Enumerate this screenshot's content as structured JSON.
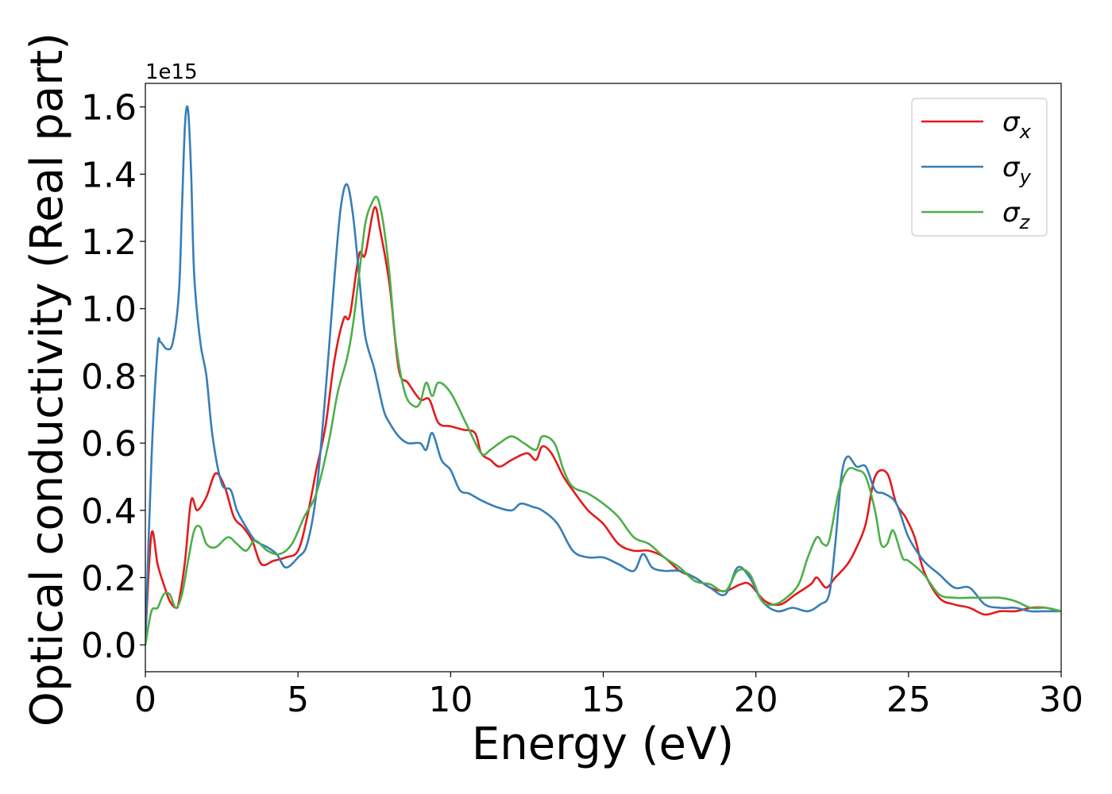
{
  "chart_data": {
    "type": "line",
    "title": "",
    "xlabel": "Energy (eV)",
    "ylabel": "Optical conductivity (Real part)",
    "y_offset_label": "1e15",
    "xlim": [
      0,
      30
    ],
    "ylim": [
      -0.08,
      1.67
    ],
    "xticks": [
      0,
      5,
      10,
      15,
      20,
      25,
      30
    ],
    "xtick_labels": [
      "0",
      "5",
      "10",
      "15",
      "20",
      "25",
      "30"
    ],
    "yticks": [
      0.0,
      0.2,
      0.4,
      0.6,
      0.8,
      1.0,
      1.2,
      1.4,
      1.6
    ],
    "ytick_labels": [
      "0.0",
      "0.2",
      "0.4",
      "0.6",
      "0.8",
      "1.0",
      "1.2",
      "1.4",
      "1.6"
    ],
    "grid": false,
    "legend_position": "top-right",
    "series": [
      {
        "name": "σx",
        "legend_symbol": "σ",
        "legend_sub": "x",
        "color": "#e41a1c",
        "x": [
          0,
          0.2,
          0.4,
          0.6,
          0.8,
          1.0,
          1.1,
          1.3,
          1.5,
          1.7,
          2.0,
          2.3,
          2.6,
          2.9,
          3.2,
          3.5,
          3.8,
          4.2,
          4.6,
          5.0,
          5.3,
          5.6,
          5.9,
          6.2,
          6.5,
          6.7,
          7.0,
          7.2,
          7.5,
          7.7,
          8.0,
          8.3,
          8.6,
          9.0,
          9.3,
          9.6,
          10.0,
          10.4,
          10.8,
          11.0,
          11.3,
          11.6,
          12.0,
          12.5,
          12.8,
          13.0,
          13.3,
          13.7,
          14.0,
          14.5,
          15.0,
          15.5,
          16.0,
          16.5,
          17.0,
          17.5,
          18.0,
          18.5,
          19.0,
          19.5,
          19.8,
          20.3,
          20.8,
          21.3,
          21.8,
          22.0,
          22.3,
          22.6,
          23.0,
          23.3,
          23.6,
          23.9,
          24.3,
          24.6,
          24.9,
          25.2,
          25.5,
          26.0,
          26.5,
          27.0,
          27.5,
          28.0,
          28.5,
          29.0,
          29.5,
          30.0
        ],
        "y": [
          0.02,
          0.33,
          0.24,
          0.18,
          0.13,
          0.11,
          0.13,
          0.25,
          0.43,
          0.4,
          0.44,
          0.51,
          0.47,
          0.38,
          0.35,
          0.31,
          0.24,
          0.25,
          0.26,
          0.28,
          0.38,
          0.52,
          0.65,
          0.85,
          0.97,
          0.98,
          1.16,
          1.16,
          1.3,
          1.23,
          1.07,
          0.82,
          0.78,
          0.73,
          0.73,
          0.66,
          0.65,
          0.64,
          0.63,
          0.57,
          0.55,
          0.53,
          0.55,
          0.57,
          0.55,
          0.59,
          0.57,
          0.5,
          0.46,
          0.4,
          0.36,
          0.3,
          0.28,
          0.28,
          0.26,
          0.22,
          0.2,
          0.17,
          0.16,
          0.18,
          0.18,
          0.13,
          0.12,
          0.15,
          0.18,
          0.2,
          0.17,
          0.2,
          0.24,
          0.29,
          0.36,
          0.5,
          0.51,
          0.42,
          0.38,
          0.32,
          0.22,
          0.14,
          0.12,
          0.11,
          0.09,
          0.1,
          0.1,
          0.11,
          0.11,
          0.1
        ]
      },
      {
        "name": "σy",
        "legend_symbol": "σ",
        "legend_sub": "y",
        "color": "#377eb8",
        "x": [
          0,
          0.2,
          0.4,
          0.5,
          0.7,
          0.9,
          1.1,
          1.2,
          1.3,
          1.4,
          1.5,
          1.6,
          1.8,
          2.0,
          2.2,
          2.5,
          2.8,
          3.0,
          3.3,
          3.6,
          4.0,
          4.3,
          4.6,
          5.0,
          5.3,
          5.6,
          5.9,
          6.2,
          6.4,
          6.6,
          6.8,
          7.0,
          7.2,
          7.5,
          7.8,
          8.0,
          8.3,
          8.6,
          9.0,
          9.2,
          9.4,
          9.7,
          10.0,
          10.3,
          10.6,
          11.0,
          11.5,
          12.0,
          12.3,
          12.7,
          13.0,
          13.5,
          14.0,
          14.5,
          15.0,
          15.5,
          16.0,
          16.3,
          16.6,
          17.0,
          17.5,
          18.0,
          18.5,
          19.0,
          19.4,
          19.8,
          20.2,
          20.7,
          21.2,
          21.7,
          22.1,
          22.4,
          22.6,
          22.8,
          23.0,
          23.3,
          23.6,
          23.9,
          24.2,
          24.6,
          25.0,
          25.5,
          26.0,
          26.5,
          27.0,
          27.5,
          28.0,
          28.5,
          29.0,
          29.5,
          30.0
        ],
        "y": [
          0.01,
          0.55,
          0.88,
          0.9,
          0.88,
          0.9,
          1.05,
          1.3,
          1.55,
          1.59,
          1.4,
          1.1,
          0.9,
          0.8,
          0.62,
          0.48,
          0.46,
          0.4,
          0.35,
          0.31,
          0.29,
          0.27,
          0.23,
          0.26,
          0.3,
          0.45,
          0.75,
          1.1,
          1.3,
          1.37,
          1.28,
          1.1,
          0.92,
          0.82,
          0.7,
          0.66,
          0.62,
          0.6,
          0.6,
          0.58,
          0.63,
          0.55,
          0.52,
          0.46,
          0.45,
          0.43,
          0.41,
          0.4,
          0.42,
          0.41,
          0.4,
          0.36,
          0.28,
          0.26,
          0.26,
          0.24,
          0.22,
          0.27,
          0.23,
          0.22,
          0.22,
          0.2,
          0.17,
          0.15,
          0.23,
          0.2,
          0.13,
          0.1,
          0.11,
          0.1,
          0.12,
          0.15,
          0.3,
          0.5,
          0.56,
          0.53,
          0.53,
          0.46,
          0.45,
          0.42,
          0.32,
          0.25,
          0.21,
          0.17,
          0.17,
          0.12,
          0.11,
          0.11,
          0.1,
          0.1,
          0.1
        ]
      },
      {
        "name": "σz",
        "legend_symbol": "σ",
        "legend_sub": "z",
        "color": "#4daf4a",
        "x": [
          0,
          0.2,
          0.4,
          0.6,
          0.8,
          1.0,
          1.2,
          1.4,
          1.6,
          1.8,
          2.0,
          2.3,
          2.7,
          3.0,
          3.3,
          3.6,
          4.0,
          4.4,
          4.8,
          5.2,
          5.6,
          6.0,
          6.3,
          6.6,
          6.8,
          7.0,
          7.2,
          7.4,
          7.6,
          7.8,
          8.0,
          8.2,
          8.5,
          8.8,
          9.0,
          9.2,
          9.4,
          9.6,
          10.0,
          10.5,
          11.0,
          11.3,
          11.6,
          12.0,
          12.4,
          12.8,
          13.0,
          13.4,
          13.7,
          14.0,
          14.5,
          15.0,
          15.5,
          16.0,
          16.5,
          17.0,
          17.5,
          18.0,
          18.5,
          19.0,
          19.4,
          19.8,
          20.2,
          20.6,
          21.0,
          21.4,
          21.7,
          22.0,
          22.2,
          22.4,
          22.7,
          23.0,
          23.3,
          23.6,
          23.9,
          24.1,
          24.3,
          24.5,
          24.8,
          25.0,
          25.5,
          26.0,
          26.5,
          27.0,
          27.5,
          28.0,
          28.5,
          29.0,
          29.5,
          30.0
        ],
        "y": [
          0.0,
          0.1,
          0.11,
          0.15,
          0.15,
          0.11,
          0.15,
          0.25,
          0.34,
          0.35,
          0.3,
          0.29,
          0.32,
          0.3,
          0.28,
          0.31,
          0.28,
          0.27,
          0.3,
          0.38,
          0.45,
          0.6,
          0.75,
          0.85,
          0.95,
          1.1,
          1.25,
          1.31,
          1.33,
          1.25,
          1.1,
          0.9,
          0.75,
          0.71,
          0.72,
          0.78,
          0.74,
          0.78,
          0.75,
          0.66,
          0.57,
          0.58,
          0.6,
          0.62,
          0.6,
          0.58,
          0.62,
          0.6,
          0.52,
          0.47,
          0.45,
          0.42,
          0.38,
          0.32,
          0.3,
          0.26,
          0.23,
          0.19,
          0.18,
          0.16,
          0.22,
          0.21,
          0.13,
          0.12,
          0.14,
          0.18,
          0.26,
          0.32,
          0.3,
          0.31,
          0.45,
          0.52,
          0.52,
          0.5,
          0.4,
          0.3,
          0.3,
          0.34,
          0.26,
          0.25,
          0.21,
          0.15,
          0.14,
          0.14,
          0.14,
          0.14,
          0.13,
          0.11,
          0.11,
          0.1
        ]
      }
    ]
  }
}
